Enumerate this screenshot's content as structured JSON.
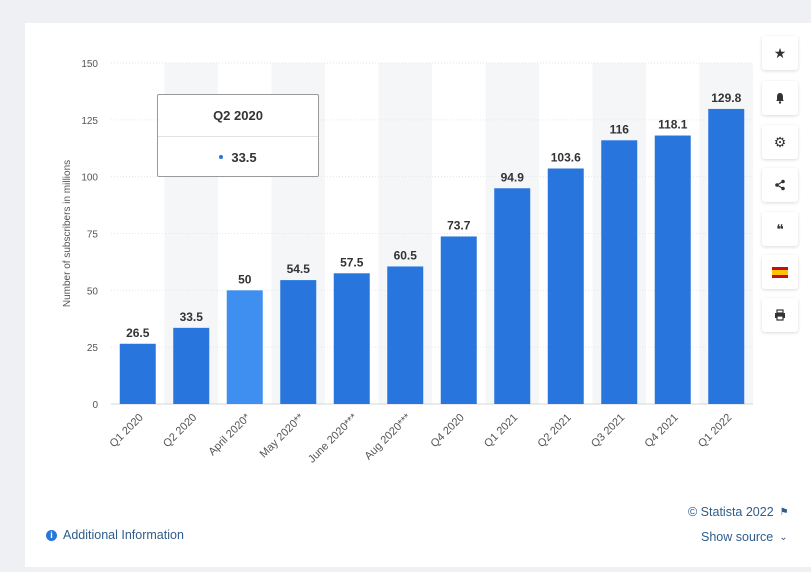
{
  "chart_data": {
    "type": "bar",
    "categories": [
      "Q1 2020",
      "Q2 2020",
      "April 2020*",
      "May 2020**",
      "June 2020***",
      "Aug 2020***",
      "Q4 2020",
      "Q1 2021",
      "Q2 2021",
      "Q3 2021",
      "Q4 2021",
      "Q1 2022"
    ],
    "values": [
      26.5,
      33.5,
      50,
      54.5,
      57.5,
      60.5,
      73.7,
      94.9,
      103.6,
      116,
      118.1,
      129.8
    ],
    "value_labels": [
      "26.5",
      "33.5",
      "50",
      "54.5",
      "57.5",
      "60.5",
      "73.7",
      "94.9",
      "103.6",
      "116",
      "118.1",
      "129.8"
    ],
    "ylabel": "Number of subscribers in millions",
    "ylim": [
      0,
      150
    ],
    "yticks": [
      0,
      25,
      50,
      75,
      100,
      125,
      150
    ],
    "grid": true,
    "highlighted_category": "April 2020*",
    "colors": {
      "bar": "#2876dd",
      "bar_highlight": "#3e8ff0",
      "band": "#f5f6f8"
    }
  },
  "tooltip": {
    "title": "Q2 2020",
    "value": "33.5"
  },
  "toolbar": [
    {
      "icon": "star-icon",
      "glyph": "★"
    },
    {
      "icon": "bell-icon",
      "glyph": "🔔"
    },
    {
      "icon": "gear-icon",
      "glyph": "⚙"
    },
    {
      "icon": "share-icon",
      "glyph": "<"
    },
    {
      "icon": "quote-icon",
      "glyph": "❝"
    },
    {
      "icon": "language-flag-icon",
      "glyph": ""
    },
    {
      "icon": "print-icon",
      "glyph": "⎙"
    }
  ],
  "footer": {
    "additional_info": "Additional Information",
    "copyright": "© Statista 2022",
    "show_source": "Show source"
  }
}
